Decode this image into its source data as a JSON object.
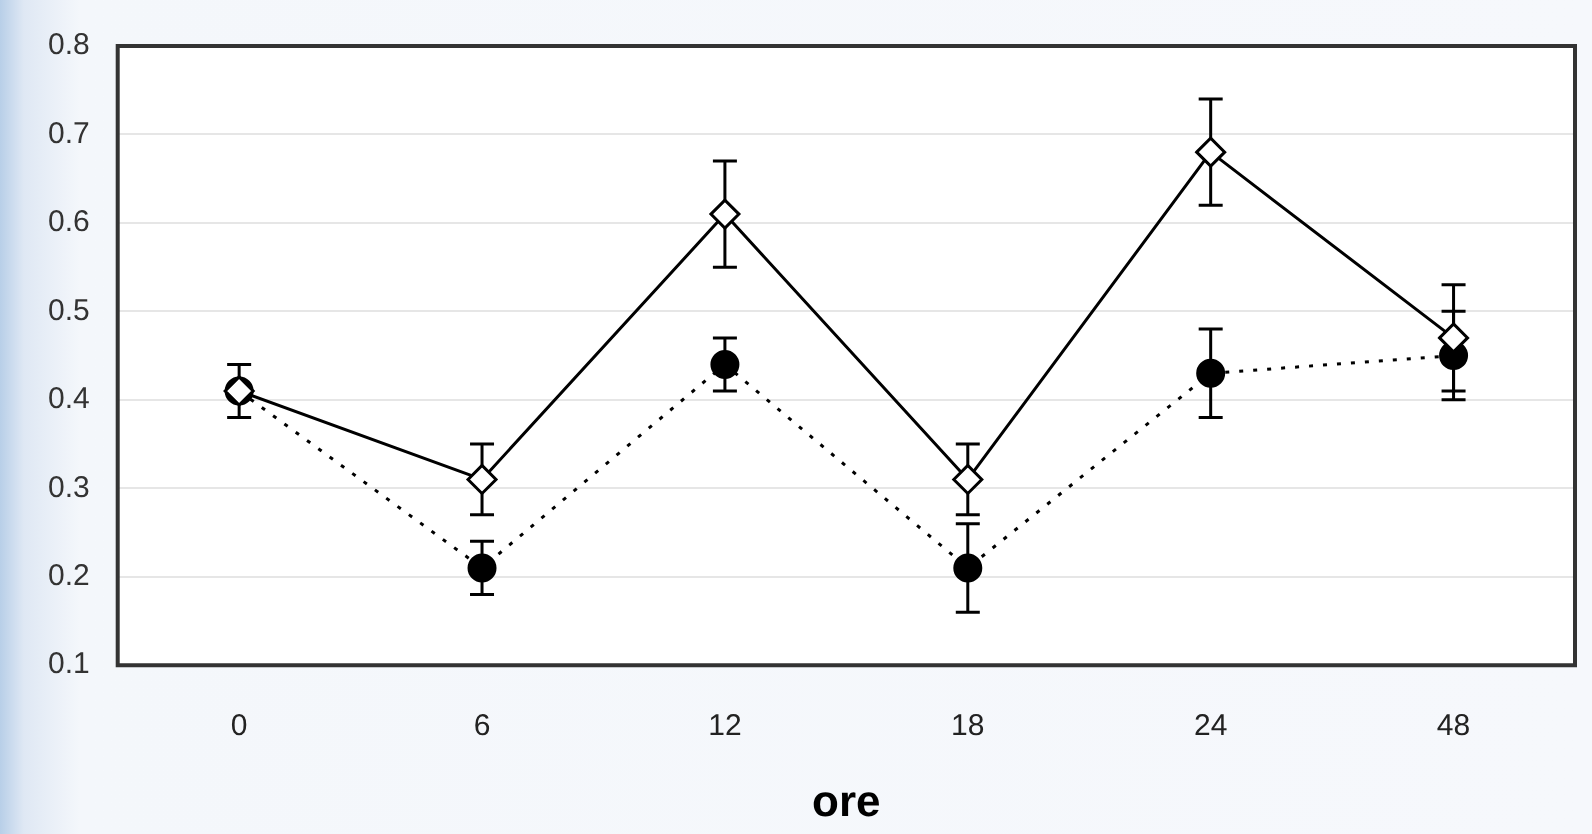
{
  "chart_data": {
    "type": "line",
    "xlabel": "ore",
    "categories": [
      "0",
      "6",
      "12",
      "18",
      "24",
      "48"
    ],
    "series": [
      {
        "color": "#000000",
        "marker": "diamond",
        "line_style": "solid",
        "values": [
          0.41,
          0.31,
          0.61,
          0.31,
          0.68,
          0.47
        ],
        "errors": [
          0.03,
          0.04,
          0.06,
          0.04,
          0.06,
          0.06
        ]
      },
      {
        "color": "#000000",
        "marker": "circle",
        "line_style": "dotted",
        "values": [
          0.41,
          0.21,
          0.44,
          0.21,
          0.43,
          0.45
        ],
        "errors": [
          null,
          0.03,
          0.03,
          0.05,
          0.05,
          0.05
        ]
      }
    ],
    "ylim": [
      0.1,
      0.8
    ],
    "yticks": [
      0.1,
      0.2,
      0.3,
      0.4,
      0.5,
      0.6,
      0.7,
      0.8
    ],
    "grid": "y",
    "legend": false
  }
}
